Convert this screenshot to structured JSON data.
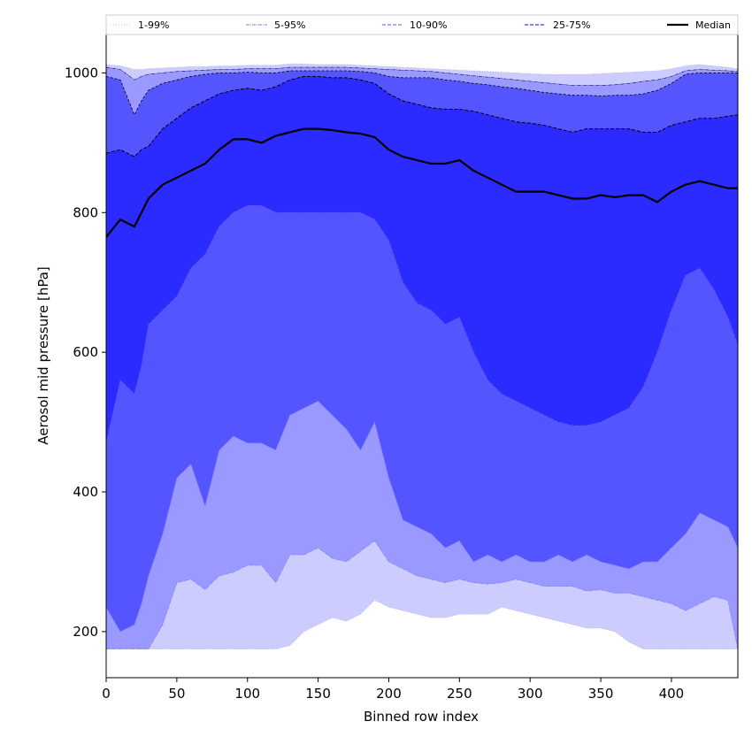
{
  "chart_data": {
    "type": "area",
    "title": "",
    "xlabel": "Binned row index",
    "ylabel": "Aerosol mid pressure [hPa]",
    "xlim": [
      0,
      447
    ],
    "ylim": [
      134,
      1055
    ],
    "x_ticks": [
      0,
      50,
      100,
      150,
      200,
      250,
      300,
      350,
      400
    ],
    "y_ticks": [
      200,
      400,
      600,
      800,
      1000
    ],
    "legend": {
      "position": "top",
      "entries": [
        {
          "label": "1-99%",
          "style": "dotted",
          "color": "#ccccff"
        },
        {
          "label": "5-95%",
          "style": "dashdot",
          "color": "#9999ff"
        },
        {
          "label": "10-90%",
          "style": "dashed",
          "color": "#7777ff"
        },
        {
          "label": "25-75%",
          "style": "dashed",
          "color": "#3333ff"
        },
        {
          "label": "Median",
          "style": "solid",
          "color": "#000000"
        }
      ]
    },
    "colors": {
      "band_1_99": "#ccccff",
      "band_5_95": "#9999ff",
      "band_10_90": "#5555ff",
      "band_25_75": "#2b2bff",
      "median": "#000000"
    },
    "x": [
      0,
      10,
      20,
      25,
      30,
      40,
      50,
      60,
      70,
      80,
      90,
      100,
      110,
      120,
      130,
      140,
      150,
      160,
      170,
      180,
      190,
      200,
      210,
      220,
      230,
      240,
      250,
      260,
      270,
      280,
      290,
      300,
      310,
      320,
      330,
      340,
      350,
      360,
      370,
      380,
      390,
      400,
      410,
      420,
      430,
      440,
      447
    ],
    "series": [
      {
        "name": "p1",
        "values": [
          175,
          175,
          175,
          175,
          175,
          175,
          175,
          175,
          175,
          175,
          175,
          175,
          175,
          175,
          180,
          200,
          210,
          220,
          215,
          225,
          245,
          235,
          230,
          225,
          220,
          220,
          225,
          225,
          225,
          235,
          230,
          225,
          220,
          215,
          210,
          205,
          205,
          200,
          185,
          175,
          175,
          175,
          175,
          175,
          175,
          175,
          175
        ]
      },
      {
        "name": "p5",
        "values": [
          175,
          175,
          175,
          175,
          175,
          210,
          270,
          275,
          260,
          280,
          285,
          295,
          295,
          270,
          310,
          310,
          320,
          305,
          300,
          315,
          330,
          300,
          290,
          280,
          275,
          270,
          275,
          270,
          268,
          270,
          275,
          270,
          265,
          265,
          265,
          258,
          260,
          255,
          255,
          250,
          245,
          240,
          230,
          240,
          250,
          245,
          175
        ]
      },
      {
        "name": "p10",
        "values": [
          235,
          200,
          210,
          240,
          280,
          340,
          420,
          440,
          380,
          460,
          480,
          470,
          470,
          460,
          510,
          520,
          530,
          510,
          490,
          460,
          500,
          420,
          360,
          350,
          340,
          320,
          330,
          300,
          310,
          300,
          310,
          300,
          300,
          310,
          300,
          310,
          300,
          295,
          290,
          300,
          300,
          320,
          340,
          370,
          360,
          350,
          320
        ]
      },
      {
        "name": "p25",
        "values": [
          470,
          560,
          540,
          580,
          640,
          660,
          680,
          720,
          740,
          780,
          800,
          810,
          810,
          800,
          800,
          800,
          800,
          800,
          800,
          800,
          790,
          760,
          700,
          670,
          660,
          640,
          650,
          600,
          560,
          540,
          530,
          520,
          510,
          500,
          495,
          495,
          500,
          510,
          520,
          550,
          600,
          660,
          710,
          720,
          690,
          650,
          610
        ]
      },
      {
        "name": "p50",
        "values": [
          765,
          790,
          780,
          800,
          820,
          840,
          850,
          860,
          870,
          890,
          905,
          905,
          900,
          910,
          915,
          920,
          920,
          918,
          915,
          913,
          908,
          890,
          880,
          875,
          870,
          870,
          875,
          860,
          850,
          840,
          830,
          830,
          830,
          825,
          820,
          820,
          825,
          822,
          825,
          825,
          815,
          830,
          840,
          845,
          840,
          835,
          835
        ]
      },
      {
        "name": "p75",
        "values": [
          885,
          890,
          880,
          890,
          895,
          920,
          935,
          950,
          960,
          970,
          975,
          978,
          975,
          980,
          990,
          995,
          995,
          993,
          993,
          990,
          985,
          970,
          960,
          955,
          950,
          948,
          948,
          945,
          940,
          935,
          930,
          928,
          925,
          920,
          915,
          920,
          920,
          920,
          920,
          915,
          915,
          925,
          930,
          935,
          935,
          938,
          940
        ]
      },
      {
        "name": "p90",
        "values": [
          995,
          990,
          940,
          960,
          975,
          985,
          990,
          995,
          998,
          1000,
          1000,
          1001,
          1000,
          1000,
          1003,
          1003,
          1003,
          1003,
          1003,
          1002,
          1000,
          995,
          993,
          993,
          993,
          990,
          988,
          985,
          983,
          980,
          978,
          975,
          972,
          970,
          968,
          968,
          967,
          968,
          968,
          970,
          975,
          985,
          998,
          1000,
          1000,
          1000,
          1000
        ]
      },
      {
        "name": "p95",
        "values": [
          1008,
          1005,
          990,
          995,
          998,
          1000,
          1002,
          1003,
          1004,
          1005,
          1005,
          1006,
          1006,
          1006,
          1008,
          1008,
          1008,
          1008,
          1008,
          1007,
          1006,
          1005,
          1004,
          1003,
          1002,
          1000,
          998,
          996,
          994,
          992,
          990,
          988,
          986,
          984,
          982,
          982,
          982,
          983,
          985,
          988,
          990,
          995,
          1003,
          1005,
          1004,
          1003,
          1002
        ]
      },
      {
        "name": "p99",
        "values": [
          1012,
          1010,
          1005,
          1005,
          1006,
          1007,
          1008,
          1009,
          1009,
          1010,
          1010,
          1011,
          1011,
          1011,
          1013,
          1013,
          1012,
          1012,
          1012,
          1011,
          1010,
          1009,
          1008,
          1007,
          1006,
          1005,
          1004,
          1003,
          1002,
          1001,
          1000,
          999,
          998,
          998,
          998,
          998,
          999,
          1000,
          1001,
          1002,
          1003,
          1006,
          1010,
          1012,
          1010,
          1008,
          1006
        ]
      }
    ]
  }
}
